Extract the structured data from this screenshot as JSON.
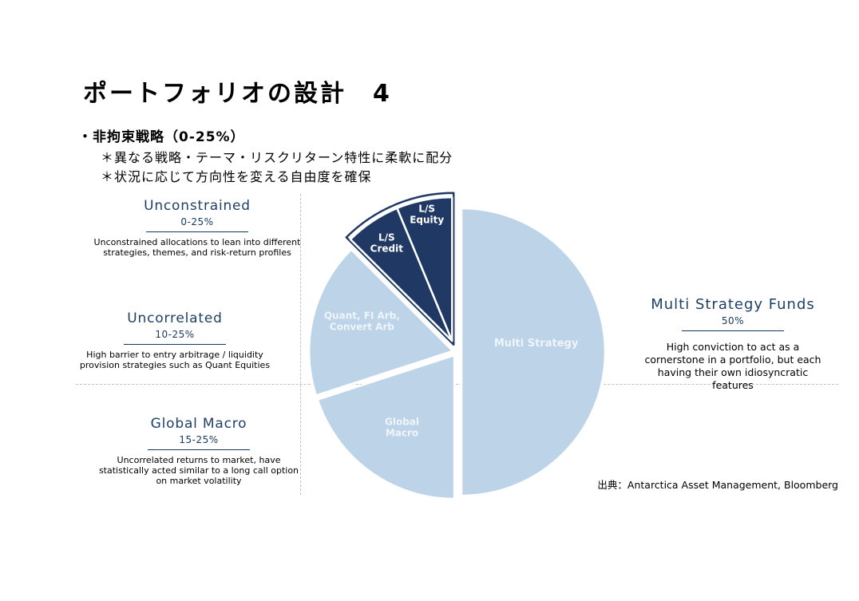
{
  "slide": {
    "title": "ポートフォリオの設計　4",
    "bullet": "・非拘束戦略（0-25%）",
    "sub_bullets": [
      "＊異なる戦略・テーマ・リスクリターン特性に柔軟に配分",
      "＊状況に応じて方向性を変える自由度を確保"
    ],
    "source": "出典：Antarctica Asset Management, Bloomberg"
  },
  "annotations": {
    "left": [
      {
        "title": "Unconstrained",
        "range": "0-25%",
        "desc": "Unconstrained allocations to lean into different strategies, themes, and risk-return profiles"
      },
      {
        "title": "Uncorrelated",
        "range": "10-25%",
        "desc": "High barrier to entry arbitrage / liquidity provision strategies such as Quant Equities"
      },
      {
        "title": "Global Macro",
        "range": "15-25%",
        "desc": "Uncorrelated returns to market, have statistically acted similar to a long call option on market volatility"
      }
    ],
    "right": {
      "title": "Multi Strategy Funds",
      "range": "50%",
      "desc": "High conviction to act as a cornerstone in a portfolio, but each having their own idiosyncratic features"
    }
  },
  "colors": {
    "light_blue": "#BDD3E8",
    "dark_navy": "#1F3864",
    "header_navy": "#1F4066",
    "guide_gray": "#BFBFBF",
    "white": "#FFFFFF"
  },
  "chart_data": {
    "type": "pie",
    "unit": "%",
    "title": "",
    "direction": "clockwise",
    "start_angle_deg": 0,
    "center": [
      572,
      441
    ],
    "radius": 180,
    "slices": [
      {
        "label": "Multi Strategy",
        "value": 50,
        "color": "light_blue",
        "label_lines": [
          "Multi Strategy"
        ],
        "label_color": "#F2F7FC",
        "label_opacity": 0.92,
        "label_size": 13,
        "explode": 6,
        "label_factor": 0.52,
        "label_dy": -11
      },
      {
        "label": "Global Macro",
        "value": 20,
        "color": "light_blue",
        "label_lines": [
          "Global",
          "Macro"
        ],
        "label_color": "#F2F7FC",
        "label_opacity": 0.92,
        "label_size": 12,
        "explode": 5,
        "label_factor": 0.62,
        "label_dy": 0
      },
      {
        "label": "Quant, FI Arb, Convert Arb",
        "value": 17.5,
        "color": "light_blue",
        "label_lines": [
          "Quant, FI Arb,",
          "Convert Arb"
        ],
        "label_color": "#F2F7FC",
        "label_opacity": 0.92,
        "label_size": 12,
        "explode": 5,
        "label_factor": 0.65,
        "label_dy": -10
      },
      {
        "label": "L/S Credit",
        "value": 6.25,
        "color": "dark_navy",
        "label_lines": [
          "L/S",
          "Credit"
        ],
        "label_color": "#FFFFFF",
        "label_opacity": 1,
        "label_size": 12,
        "explode": 15,
        "explode_angle": 337.5,
        "label_factor": 0.82,
        "label_dy": 0
      },
      {
        "label": "L/S Equity",
        "value": 6.25,
        "color": "dark_navy",
        "label_lines": [
          "L/S",
          "Equity"
        ],
        "label_color": "#FFFFFF",
        "label_opacity": 1,
        "label_size": 12,
        "explode": 15,
        "explode_angle": 337.5,
        "label_factor": 0.9,
        "label_dy": 0
      }
    ],
    "highlight_outline": {
      "slice_indexes": [
        3,
        4
      ],
      "explode": 10,
      "radius_extra": 10,
      "stroke": "dark_navy"
    },
    "legend": "none"
  }
}
